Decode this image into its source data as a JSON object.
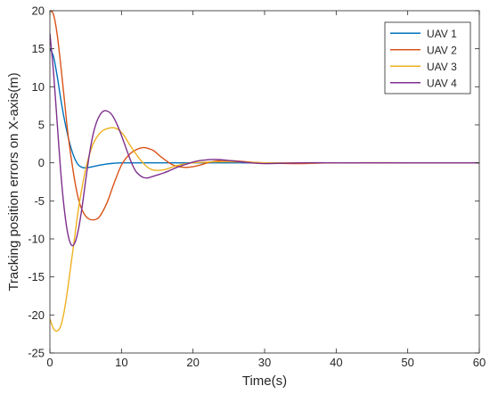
{
  "chart_data": {
    "type": "line",
    "title": "",
    "xlabel": "Time(s)",
    "ylabel": "Tracking position errors on X-axis(m)",
    "xlim": [
      0,
      60
    ],
    "ylim": [
      -25,
      20
    ],
    "xticks": [
      0,
      10,
      20,
      30,
      40,
      50,
      60
    ],
    "yticks": [
      -25,
      -20,
      -15,
      -10,
      -5,
      0,
      5,
      10,
      15,
      20
    ],
    "xtick_labels": [
      "0",
      "10",
      "20",
      "30",
      "40",
      "50",
      "60"
    ],
    "ytick_labels": [
      "-25",
      "-20",
      "-15",
      "-10",
      "-5",
      "0",
      "5",
      "10",
      "15",
      "20"
    ],
    "grid": false,
    "legend_position": "top-right",
    "series": [
      {
        "name": "UAV 1",
        "color": "#0072BD",
        "x": [
          0,
          0.5,
          1,
          1.5,
          2,
          2.5,
          3,
          3.5,
          4,
          4.5,
          5,
          6,
          7,
          8,
          9,
          10,
          12,
          15,
          20,
          30,
          40,
          50,
          60
        ],
        "y": [
          15,
          14,
          11.5,
          8.5,
          5.8,
          3.6,
          1.8,
          0.5,
          -0.3,
          -0.6,
          -0.65,
          -0.5,
          -0.3,
          -0.15,
          -0.05,
          0,
          0,
          0,
          0,
          0,
          0,
          0,
          0
        ]
      },
      {
        "name": "UAV 2",
        "color": "#D95319",
        "x": [
          0,
          0.5,
          1,
          1.5,
          2,
          2.5,
          3,
          3.5,
          4,
          4.5,
          5,
          5.5,
          6,
          6.5,
          7,
          8,
          9,
          10,
          11,
          12,
          13,
          13.7,
          14.5,
          15.5,
          17,
          18,
          19,
          20,
          21,
          22,
          23,
          24,
          26,
          28,
          30,
          35,
          40,
          50,
          60
        ],
        "y": [
          20,
          19.5,
          17,
          13,
          8.5,
          4,
          0.5,
          -2.5,
          -4.8,
          -6.2,
          -7,
          -7.4,
          -7.5,
          -7.4,
          -7,
          -5.2,
          -2.6,
          -0.3,
          1,
          1.7,
          2,
          1.9,
          1.6,
          0.8,
          -0.2,
          -0.5,
          -0.6,
          -0.5,
          -0.3,
          0,
          0.2,
          0.3,
          0.25,
          0.1,
          0,
          -0.1,
          0,
          0,
          0
        ]
      },
      {
        "name": "UAV 3",
        "color": "#EDB120",
        "x": [
          0,
          0.5,
          1,
          1.5,
          2,
          2.5,
          3,
          3.5,
          4,
          4.5,
          5,
          5.5,
          6,
          6.5,
          7,
          7.5,
          8,
          8.5,
          9,
          9.5,
          10,
          10.5,
          11,
          12,
          13,
          14,
          15,
          16,
          17,
          18,
          19,
          20,
          22,
          24,
          27,
          30,
          35,
          40,
          50,
          60
        ],
        "y": [
          -20.5,
          -21.8,
          -22.1,
          -21.5,
          -19.5,
          -16.5,
          -13,
          -9.5,
          -6,
          -3.2,
          -0.8,
          1,
          2.4,
          3.3,
          3.9,
          4.3,
          4.5,
          4.6,
          4.6,
          4.4,
          4,
          3.4,
          2.6,
          1.2,
          0,
          -0.8,
          -1,
          -0.9,
          -0.6,
          -0.3,
          -0.1,
          0,
          0.1,
          0.15,
          0.1,
          0,
          0,
          0,
          0,
          0
        ]
      },
      {
        "name": "UAV 4",
        "color": "#7E2F8E",
        "x": [
          0,
          0.5,
          1,
          1.5,
          2,
          2.5,
          3,
          3.5,
          4,
          4.5,
          5,
          5.5,
          6,
          6.5,
          7,
          7.5,
          8,
          8.5,
          9,
          9.5,
          10,
          10.5,
          11,
          11.5,
          12,
          12.5,
          13,
          13.5,
          14,
          15,
          16,
          17,
          18,
          19,
          20,
          21,
          22,
          23,
          24,
          25,
          26,
          28,
          30,
          35,
          40,
          50,
          60
        ],
        "y": [
          17,
          12,
          5.5,
          -1,
          -6,
          -9.3,
          -10.8,
          -10.5,
          -8.7,
          -5.8,
          -2.3,
          1,
          3.6,
          5.3,
          6.3,
          6.8,
          6.8,
          6.5,
          5.8,
          4.8,
          3.6,
          2.3,
          1,
          -0.2,
          -1.1,
          -1.6,
          -1.9,
          -2,
          -1.9,
          -1.6,
          -1.3,
          -0.9,
          -0.5,
          -0.2,
          0.1,
          0.3,
          0.4,
          0.45,
          0.4,
          0.3,
          0.2,
          0,
          -0.1,
          0,
          0,
          0,
          0
        ]
      }
    ]
  }
}
